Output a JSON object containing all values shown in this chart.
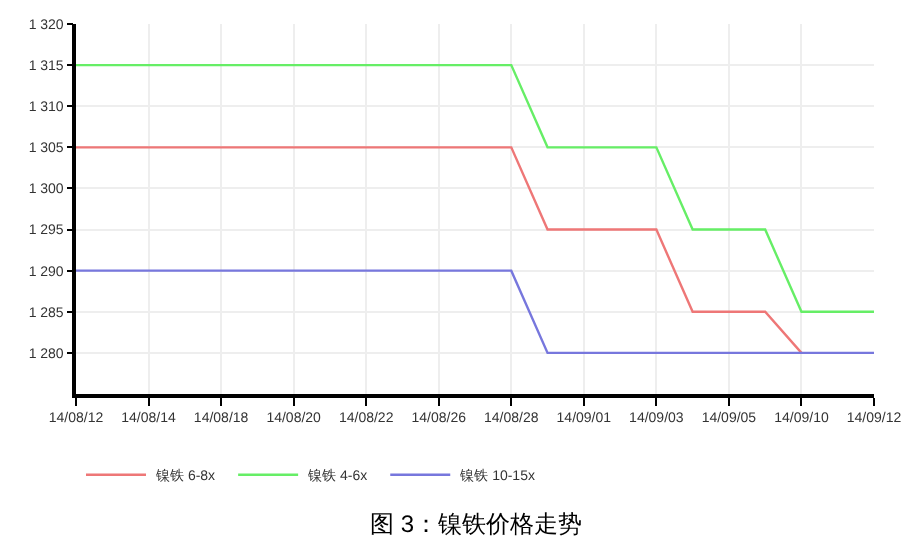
{
  "chart_data": {
    "type": "line",
    "categories": [
      "14/08/12",
      null,
      "14/08/14",
      null,
      "14/08/18",
      null,
      "14/08/20",
      null,
      "14/08/22",
      null,
      "14/08/26",
      null,
      "14/08/28",
      null,
      "14/09/01",
      null,
      "14/09/03",
      null,
      "14/09/05",
      null,
      "14/09/10",
      null,
      "14/09/12"
    ],
    "ylim": [
      1275,
      1320
    ],
    "yticks": [
      {
        "value": 1280,
        "label": "1 280"
      },
      {
        "value": 1285,
        "label": "1 285"
      },
      {
        "value": 1290,
        "label": "1 290"
      },
      {
        "value": 1295,
        "label": "1 295"
      },
      {
        "value": 1300,
        "label": "1 300"
      },
      {
        "value": 1305,
        "label": "1 305"
      },
      {
        "value": 1310,
        "label": "1 310"
      },
      {
        "value": 1315,
        "label": "1 315"
      },
      {
        "value": 1320,
        "label": "1 320"
      }
    ],
    "series": [
      {
        "name": "镍铁 6-8x",
        "color": "#ee7777",
        "values": [
          1305,
          1305,
          1305,
          1305,
          1305,
          1305,
          1305,
          1305,
          1305,
          1305,
          1305,
          1305,
          1305,
          1295,
          1295,
          1295,
          1295,
          1285,
          1285,
          1285,
          1280,
          null,
          null
        ]
      },
      {
        "name": "镍铁 4-6x",
        "color": "#66ee66",
        "values": [
          1315,
          1315,
          1315,
          1315,
          1315,
          1315,
          1315,
          1315,
          1315,
          1315,
          1315,
          1315,
          1315,
          1305,
          1305,
          1305,
          1305,
          1295,
          1295,
          1295,
          1285,
          1285,
          1285
        ]
      },
      {
        "name": "镍铁 10-15x",
        "color": "#7777dd",
        "values": [
          1290,
          1290,
          1290,
          1290,
          1290,
          1290,
          1290,
          1290,
          1290,
          1290,
          1290,
          1290,
          1290,
          1280,
          1280,
          1280,
          1280,
          1280,
          1280,
          1280,
          1280,
          1280,
          1280
        ]
      }
    ],
    "grid": true,
    "legend": "bottom",
    "marker": "none",
    "line_style": "solid",
    "annotations": [
      "图 3：镍铁价格走势"
    ]
  }
}
